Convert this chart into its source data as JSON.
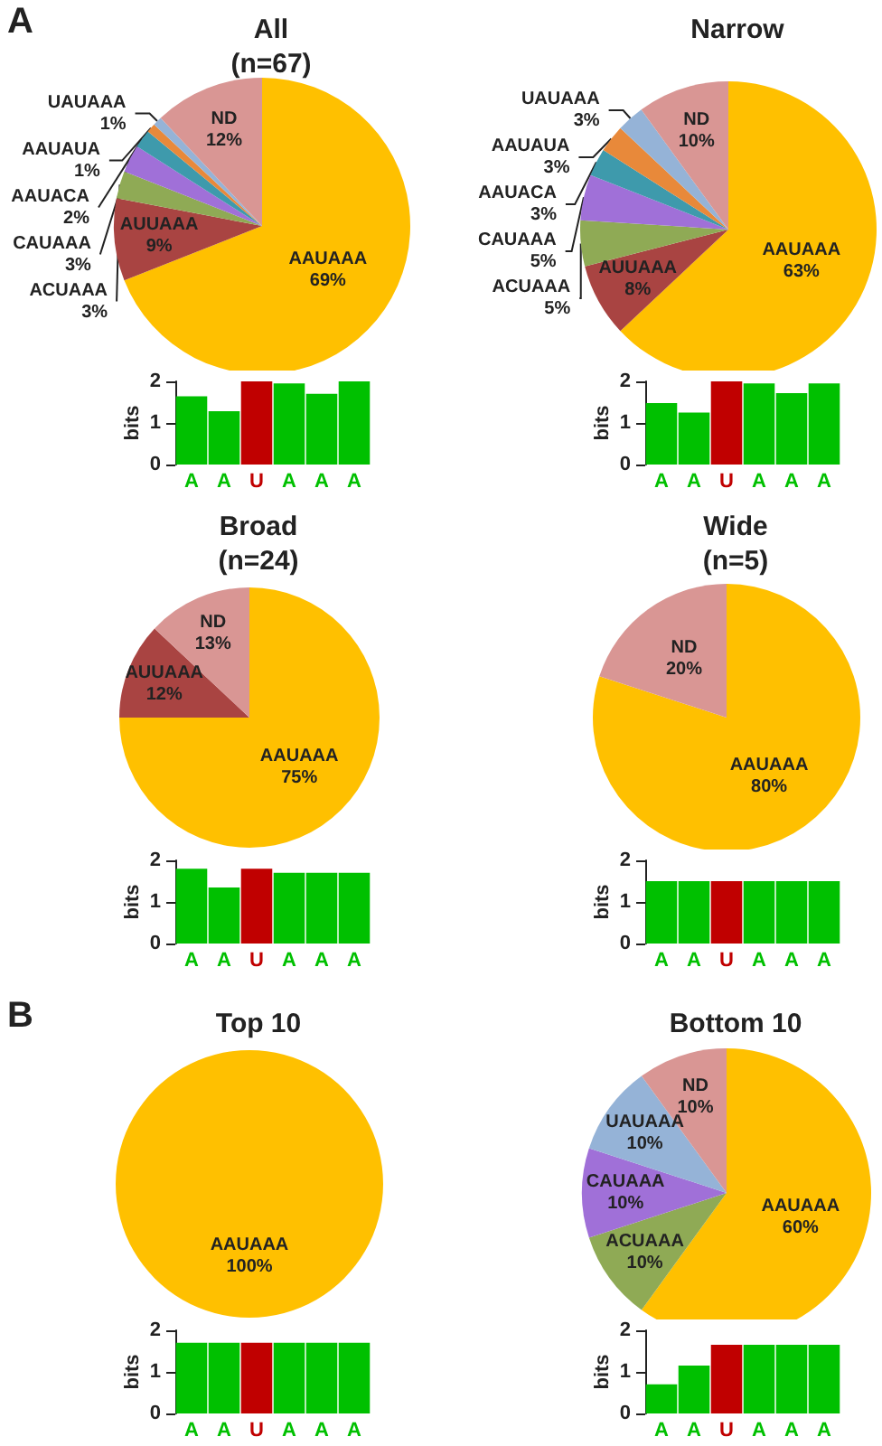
{
  "chart_data": [
    {
      "type": "pie",
      "title": "All",
      "subtitle": "(n=67)",
      "annotations": [
        "A"
      ],
      "categories": [
        "AAUAAA",
        "AUUAAA",
        "ACUAAA",
        "CAUAAA",
        "AAUACA",
        "AAUAUA",
        "UAUAAA",
        "ND"
      ],
      "values": [
        69,
        9,
        3,
        3,
        2,
        1,
        1,
        12
      ],
      "value_labels": [
        "69%",
        "9%",
        "3%",
        "3%",
        "2%",
        "1%",
        "1%",
        "12%"
      ],
      "colors": [
        "#ffc000",
        "#a94442",
        "#8faa55",
        "#a070d8",
        "#3e9aac",
        "#e8893a",
        "#95b3d7",
        "#d99694"
      ]
    },
    {
      "type": "pie",
      "title": "Narrow",
      "categories": [
        "AAUAAA",
        "AUUAAA",
        "ACUAAA",
        "CAUAAA",
        "AAUACA",
        "AAUAUA",
        "UAUAAA",
        "ND"
      ],
      "values": [
        63,
        8,
        5,
        5,
        3,
        3,
        3,
        10
      ],
      "value_labels": [
        "63%",
        "8%",
        "5%",
        "5%",
        "3%",
        "3%",
        "3%",
        "10%"
      ],
      "colors": [
        "#ffc000",
        "#a94442",
        "#8faa55",
        "#a070d8",
        "#3e9aac",
        "#e8893a",
        "#95b3d7",
        "#d99694"
      ]
    },
    {
      "type": "bar",
      "ylabel": "bits",
      "ylim": [
        0,
        2
      ],
      "yticks": [
        0,
        1,
        2
      ],
      "categories": [
        "A",
        "A",
        "U",
        "A",
        "A",
        "A"
      ],
      "values": [
        1.64,
        1.28,
        2.0,
        1.95,
        1.7,
        2.0
      ],
      "colors": [
        "#00c000",
        "#00c000",
        "#c00000",
        "#00c000",
        "#00c000",
        "#00c000"
      ]
    },
    {
      "type": "bar",
      "ylabel": "bits",
      "ylim": [
        0,
        2
      ],
      "yticks": [
        0,
        1,
        2
      ],
      "categories": [
        "A",
        "A",
        "U",
        "A",
        "A",
        "A"
      ],
      "values": [
        1.48,
        1.25,
        2.0,
        1.95,
        1.72,
        1.95
      ],
      "colors": [
        "#00c000",
        "#00c000",
        "#c00000",
        "#00c000",
        "#00c000",
        "#00c000"
      ]
    },
    {
      "type": "pie",
      "title": "Broad",
      "subtitle": "(n=24)",
      "categories": [
        "AAUAAA",
        "AUUAAA",
        "ND"
      ],
      "values": [
        75,
        12,
        13
      ],
      "value_labels": [
        "75%",
        "12%",
        "13%"
      ],
      "colors": [
        "#ffc000",
        "#a94442",
        "#d99694"
      ]
    },
    {
      "type": "pie",
      "title": "Wide",
      "subtitle": "(n=5)",
      "categories": [
        "AAUAAA",
        "ND"
      ],
      "values": [
        80,
        20
      ],
      "value_labels": [
        "80%",
        "20%"
      ],
      "colors": [
        "#ffc000",
        "#d99694"
      ]
    },
    {
      "type": "bar",
      "ylabel": "bits",
      "ylim": [
        0,
        2
      ],
      "yticks": [
        0,
        1,
        2
      ],
      "categories": [
        "A",
        "A",
        "U",
        "A",
        "A",
        "A"
      ],
      "values": [
        1.8,
        1.35,
        1.8,
        1.7,
        1.7,
        1.7
      ],
      "colors": [
        "#00c000",
        "#00c000",
        "#c00000",
        "#00c000",
        "#00c000",
        "#00c000"
      ]
    },
    {
      "type": "bar",
      "ylabel": "bits",
      "ylim": [
        0,
        2
      ],
      "yticks": [
        0,
        1,
        2
      ],
      "categories": [
        "A",
        "A",
        "U",
        "A",
        "A",
        "A"
      ],
      "values": [
        1.5,
        1.5,
        1.5,
        1.5,
        1.5,
        1.5
      ],
      "colors": [
        "#00c000",
        "#00c000",
        "#c00000",
        "#00c000",
        "#00c000",
        "#00c000"
      ]
    },
    {
      "type": "pie",
      "title": "Top 10",
      "annotations": [
        "B"
      ],
      "categories": [
        "AAUAAA"
      ],
      "values": [
        100
      ],
      "value_labels": [
        "100%"
      ],
      "colors": [
        "#ffc000"
      ]
    },
    {
      "type": "pie",
      "title": "Bottom 10",
      "categories": [
        "AAUAAA",
        "ACUAAA",
        "CAUAAA",
        "UAUAAA",
        "ND"
      ],
      "values": [
        60,
        10,
        10,
        10,
        10
      ],
      "value_labels": [
        "60%",
        "10%",
        "10%",
        "10%",
        "10%"
      ],
      "colors": [
        "#ffc000",
        "#8faa55",
        "#a070d8",
        "#95b3d7",
        "#d99694"
      ]
    },
    {
      "type": "bar",
      "ylabel": "bits",
      "ylim": [
        0,
        2
      ],
      "yticks": [
        0,
        1,
        2
      ],
      "categories": [
        "A",
        "A",
        "U",
        "A",
        "A",
        "A"
      ],
      "values": [
        1.7,
        1.7,
        1.7,
        1.7,
        1.7,
        1.7
      ],
      "colors": [
        "#00c000",
        "#00c000",
        "#c00000",
        "#00c000",
        "#00c000",
        "#00c000"
      ]
    },
    {
      "type": "bar",
      "ylabel": "bits",
      "ylim": [
        0,
        2
      ],
      "yticks": [
        0,
        1,
        2
      ],
      "categories": [
        "A",
        "A",
        "U",
        "A",
        "A",
        "A"
      ],
      "values": [
        0.7,
        1.15,
        1.65,
        1.65,
        1.65,
        1.65
      ],
      "colors": [
        "#00c000",
        "#00c000",
        "#c00000",
        "#00c000",
        "#00c000",
        "#00c000"
      ]
    }
  ]
}
